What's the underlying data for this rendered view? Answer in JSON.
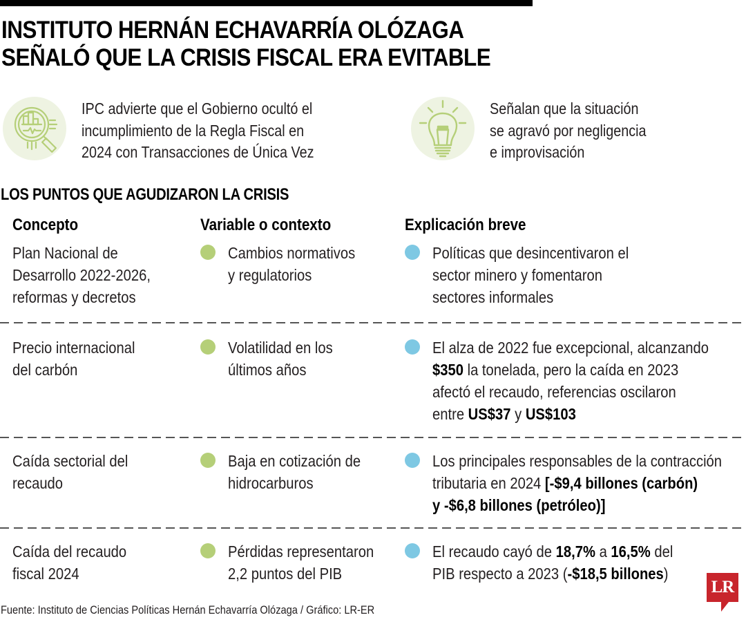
{
  "headline": {
    "line1": "INSTITUTO HERNÁN ECHAVARRÍA OLÓZAGA",
    "line2": "SEÑALÓ QUE LA CRISIS FISCAL ERA EVITABLE"
  },
  "intro": [
    {
      "icon": "magnifier-chart-icon",
      "lines": [
        "IPC advierte que el Gobierno ocultó el",
        "incumplimiento de la Regla Fiscal en",
        "2024 con Transacciones de Única Vez"
      ]
    },
    {
      "icon": "lightbulb-icon",
      "lines": [
        "Señalan que la situación",
        "se agravó por negligencia",
        "e improvisación"
      ]
    }
  ],
  "section_title": "LOS PUNTOS QUE AGUDIZARON LA CRISIS",
  "columns": [
    "Concepto",
    "Variable o contexto",
    "Explicación breve"
  ],
  "colors": {
    "variable_dot": "#b5cf78",
    "explanation_dot": "#7ec8e3",
    "icon_green": "#b5cf78",
    "icon_bg": "#eef3e2",
    "logo_red": "#c8252c"
  },
  "rows": [
    {
      "concept": [
        "Plan Nacional de",
        "Desarrollo 2022-2026,",
        "reformas y decretos"
      ],
      "variable": [
        "Cambios normativos",
        "y regulatorios"
      ],
      "explanation": [
        [
          {
            "t": "Políticas que desincentivaron el",
            "b": false
          }
        ],
        [
          {
            "t": "sector minero y fomentaron",
            "b": false
          }
        ],
        [
          {
            "t": "sectores informales",
            "b": false
          }
        ]
      ]
    },
    {
      "concept": [
        "Precio internacional",
        "del carbón"
      ],
      "variable": [
        "Volatilidad en los",
        "últimos años"
      ],
      "explanation": [
        [
          {
            "t": "El alza de 2022 fue excepcional, alcanzando",
            "b": false
          }
        ],
        [
          {
            "t": "$350",
            "b": true
          },
          {
            "t": " la tonelada, pero la caída en 2023",
            "b": false
          }
        ],
        [
          {
            "t": "afectó el recaudo, referencias oscilaron",
            "b": false
          }
        ],
        [
          {
            "t": "entre ",
            "b": false
          },
          {
            "t": "US$37",
            "b": true
          },
          {
            "t": " y ",
            "b": false
          },
          {
            "t": "US$103",
            "b": true
          }
        ]
      ]
    },
    {
      "concept": [
        "Caída sectorial del",
        "recaudo"
      ],
      "variable": [
        "Baja en cotización de",
        "hidrocarburos"
      ],
      "explanation": [
        [
          {
            "t": "Los principales responsables de la contracción",
            "b": false
          }
        ],
        [
          {
            "t": "tributaria en 2024 ",
            "b": false
          },
          {
            "t": "[-$9,4 billones (carbón)",
            "b": true
          }
        ],
        [
          {
            "t": "y -$6,8 billones (petróleo)]",
            "b": true
          }
        ]
      ]
    },
    {
      "concept": [
        "Caída del recaudo",
        "fiscal 2024"
      ],
      "variable": [
        "Pérdidas representaron",
        "2,2 puntos del PIB"
      ],
      "explanation": [
        [
          {
            "t": "El recaudo cayó de ",
            "b": false
          },
          {
            "t": "18,7%",
            "b": true
          },
          {
            "t": " a ",
            "b": false
          },
          {
            "t": "16,5%",
            "b": true
          },
          {
            "t": " del",
            "b": false
          }
        ],
        [
          {
            "t": "PIB respecto a 2023 (",
            "b": false
          },
          {
            "t": "-$18,5 billones",
            "b": true
          },
          {
            "t": ")",
            "b": false
          }
        ]
      ]
    }
  ],
  "footer": "Fuente: Instituto de Ciencias Políticas Hernán Echavarría Olózaga / Gráfico: LR-ER",
  "logo": "LR"
}
